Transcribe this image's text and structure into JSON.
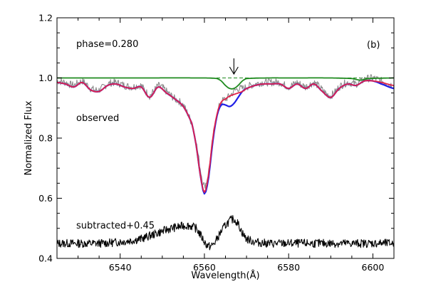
{
  "chart_data": {
    "type": "line",
    "xlabel": "Wavelength(Å)",
    "ylabel": "Normalized Flux",
    "xlim": [
      6525,
      6605
    ],
    "ylim": [
      0.4,
      1.2
    ],
    "xticks": [
      6540,
      6560,
      6580,
      6600
    ],
    "xtick_labels": [
      "6540",
      "6560",
      "6580",
      "6600"
    ],
    "yticks": [
      0.4,
      0.6,
      0.8,
      1.0,
      1.2
    ],
    "ytick_labels": [
      "0.4",
      "0.6",
      "0.8",
      "1.0",
      "1.2"
    ],
    "grid": false,
    "annotations": {
      "phase": "phase=0.280",
      "panel": "(b)",
      "observed": "observed",
      "subtracted": "subtracted+0.45"
    },
    "arrow_x": 6567,
    "colors": {
      "observed": "#8c8c8c",
      "model_blue": "#1f1fe6",
      "model_red": "#e0204a",
      "component_green": "#1f8a1f",
      "subtracted": "#000000"
    },
    "series": [
      {
        "key": "observed",
        "x": [
          6525,
          6527,
          6529,
          6531,
          6533,
          6535,
          6537,
          6539,
          6541,
          6543,
          6545,
          6547,
          6549,
          6551,
          6553,
          6555,
          6557,
          6558,
          6559,
          6560,
          6561,
          6562,
          6563,
          6564,
          6565,
          6566,
          6567,
          6568,
          6569,
          6570,
          6572,
          6574,
          6576,
          6578,
          6580,
          6582,
          6584,
          6586,
          6588,
          6590,
          6592,
          6594,
          6596,
          6598,
          6600,
          6602,
          6605
        ],
        "y": [
          0.99,
          0.985,
          0.975,
          0.99,
          0.965,
          0.96,
          0.98,
          0.985,
          0.975,
          0.97,
          0.975,
          0.94,
          0.975,
          0.955,
          0.93,
          0.91,
          0.85,
          0.79,
          0.7,
          0.64,
          0.69,
          0.8,
          0.88,
          0.92,
          0.93,
          0.94,
          0.955,
          0.965,
          0.965,
          0.97,
          0.98,
          0.985,
          0.985,
          0.985,
          0.97,
          0.985,
          0.97,
          0.985,
          0.96,
          0.94,
          0.97,
          0.985,
          0.98,
          0.995,
          1.0,
          0.99,
          0.975
        ]
      },
      {
        "key": "model_blue",
        "x": [
          6525,
          6527,
          6529,
          6531,
          6533,
          6535,
          6537,
          6539,
          6541,
          6543,
          6545,
          6547,
          6549,
          6551,
          6553,
          6555,
          6557,
          6558,
          6559,
          6560,
          6561,
          6562,
          6563,
          6564,
          6565,
          6566,
          6567,
          6568,
          6569,
          6570,
          6572,
          6574,
          6576,
          6578,
          6580,
          6582,
          6584,
          6586,
          6588,
          6590,
          6592,
          6594,
          6596,
          6598,
          6600,
          6602,
          6605
        ],
        "y": [
          0.985,
          0.98,
          0.97,
          0.985,
          0.96,
          0.955,
          0.975,
          0.98,
          0.97,
          0.965,
          0.97,
          0.935,
          0.97,
          0.95,
          0.93,
          0.905,
          0.85,
          0.78,
          0.68,
          0.615,
          0.67,
          0.79,
          0.875,
          0.91,
          0.91,
          0.905,
          0.915,
          0.935,
          0.955,
          0.965,
          0.975,
          0.98,
          0.98,
          0.98,
          0.965,
          0.98,
          0.965,
          0.98,
          0.955,
          0.935,
          0.965,
          0.98,
          0.975,
          0.99,
          0.99,
          0.98,
          0.965
        ]
      },
      {
        "key": "model_red",
        "x": [
          6525,
          6527,
          6529,
          6531,
          6533,
          6535,
          6537,
          6539,
          6541,
          6543,
          6545,
          6547,
          6549,
          6551,
          6553,
          6555,
          6557,
          6558,
          6559,
          6560,
          6561,
          6562,
          6563,
          6564,
          6565,
          6566,
          6567,
          6568,
          6569,
          6570,
          6572,
          6574,
          6576,
          6578,
          6580,
          6582,
          6584,
          6586,
          6588,
          6590,
          6592,
          6594,
          6596,
          6598,
          6600,
          6602,
          6605
        ],
        "y": [
          0.985,
          0.98,
          0.97,
          0.985,
          0.96,
          0.955,
          0.975,
          0.98,
          0.97,
          0.965,
          0.97,
          0.935,
          0.97,
          0.95,
          0.93,
          0.905,
          0.85,
          0.78,
          0.68,
          0.62,
          0.68,
          0.8,
          0.88,
          0.92,
          0.93,
          0.94,
          0.945,
          0.95,
          0.955,
          0.965,
          0.975,
          0.98,
          0.98,
          0.98,
          0.965,
          0.98,
          0.965,
          0.98,
          0.955,
          0.935,
          0.965,
          0.98,
          0.975,
          0.99,
          0.99,
          0.985,
          0.975
        ]
      },
      {
        "key": "component_green",
        "x": [
          6525,
          6540,
          6560,
          6563,
          6564,
          6565,
          6566,
          6567,
          6568,
          6569,
          6570,
          6575,
          6580,
          6590,
          6595,
          6597,
          6599,
          6605
        ],
        "y": [
          1.0,
          1.0,
          1.0,
          0.998,
          0.99,
          0.975,
          0.965,
          0.965,
          0.975,
          0.99,
          0.998,
          1.0,
          1.0,
          1.0,
          0.998,
          0.993,
          0.998,
          1.0
        ]
      },
      {
        "key": "subtracted",
        "x": [
          6525,
          6530,
          6535,
          6540,
          6545,
          6548,
          6550,
          6552,
          6554,
          6556,
          6558,
          6559,
          6560,
          6561,
          6562,
          6563,
          6564,
          6565,
          6566,
          6567,
          6568,
          6569,
          6570,
          6572,
          6575,
          6580,
          6585,
          6590,
          6595,
          6600,
          6605
        ],
        "y": [
          0.45,
          0.45,
          0.45,
          0.455,
          0.465,
          0.48,
          0.49,
          0.5,
          0.505,
          0.51,
          0.5,
          0.48,
          0.455,
          0.44,
          0.445,
          0.465,
          0.49,
          0.51,
          0.525,
          0.53,
          0.515,
          0.485,
          0.465,
          0.455,
          0.45,
          0.45,
          0.45,
          0.45,
          0.45,
          0.45,
          0.45
        ]
      }
    ],
    "dashed_reference_y": 1.0
  }
}
